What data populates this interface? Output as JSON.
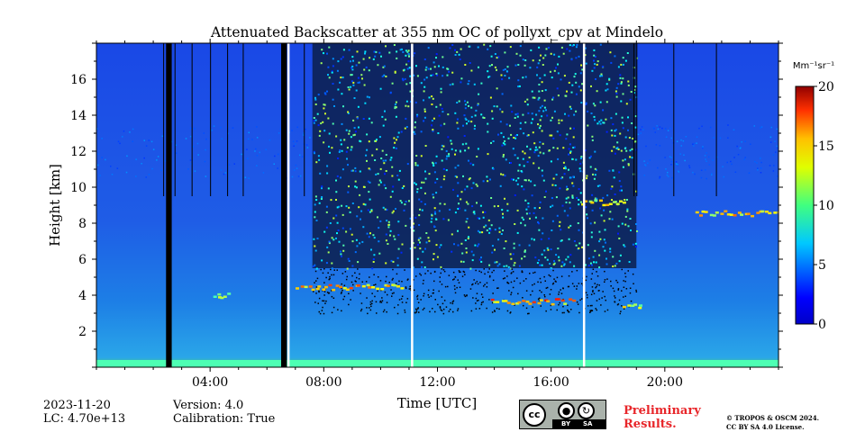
{
  "chart_data": {
    "type": "heatmap",
    "title": "Attenuated Backscatter at 355 nm OC of pollyxt_cpv at Mindelo",
    "xlabel": "Time [UTC]",
    "ylabel": "Height [km]",
    "xlim": [
      0,
      24
    ],
    "ylim": [
      0,
      18
    ],
    "xticks": [
      4,
      8,
      12,
      16,
      20
    ],
    "xtick_labels": [
      "04:00",
      "08:00",
      "12:00",
      "16:00",
      "20:00"
    ],
    "yticks": [
      2,
      4,
      6,
      8,
      10,
      12,
      14,
      16
    ],
    "ytick_labels": [
      "2",
      "4",
      "6",
      "8",
      "10",
      "12",
      "14",
      "16"
    ],
    "colorbar": {
      "label": "Mm⁻¹sr⁻¹",
      "min": 0,
      "max": 20,
      "ticks": [
        0,
        5,
        10,
        15,
        20
      ],
      "tick_labels": [
        "0",
        "5",
        "10",
        "15",
        "20"
      ],
      "colormap": "jet"
    },
    "missing_data_intervals_hours": [
      [
        2.45,
        2.65
      ],
      [
        6.5,
        6.7
      ]
    ],
    "gap_lines_hours": [
      6.75,
      11.1,
      17.15
    ],
    "cloud_layers": [
      {
        "start_h": 7.0,
        "end_h": 10.8,
        "height_km": 4.5,
        "value": 15
      },
      {
        "start_h": 13.8,
        "end_h": 16.8,
        "height_km": 3.7,
        "value": 16
      },
      {
        "start_h": 17.0,
        "end_h": 18.6,
        "height_km": 9.2,
        "value": 13
      },
      {
        "start_h": 21.0,
        "end_h": 24.0,
        "height_km": 8.6,
        "value": 14
      },
      {
        "start_h": 18.5,
        "end_h": 19.2,
        "height_km": 3.5,
        "value": 13
      },
      {
        "start_h": 4.1,
        "end_h": 4.6,
        "height_km": 4.05,
        "value": 12
      }
    ]
  },
  "footer": {
    "date": "2023-11-20",
    "lc": "LC: 4.70e+13",
    "version": "Version: 4.0",
    "calibration": "Calibration: True",
    "preliminary_line1": "Preliminary",
    "preliminary_line2": "Results.",
    "copyright_line1": "© TROPOS & OSCM 2024.",
    "copyright_line2": "CC BY SA 4.0 License."
  },
  "license_badge": {
    "cc": "cc",
    "by": "BY",
    "sa": "SA"
  },
  "colors": {
    "background_blue": "#1f56e6",
    "missing": "#000000",
    "gap": "#ffffff",
    "preliminary_red": "#e8262a"
  }
}
